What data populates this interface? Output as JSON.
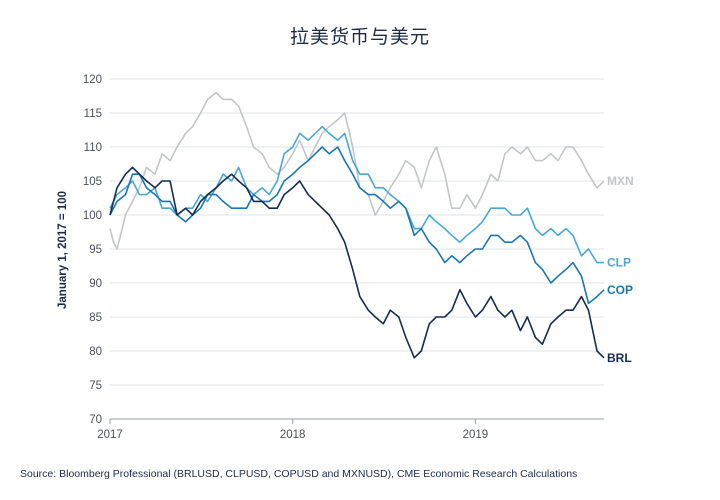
{
  "chart_data": {
    "type": "line",
    "title": "拉美货币与美元",
    "ylabel": "January 1, 2017 = 100",
    "xlabel": "",
    "source": "Source: Bloomberg Professional (BRLUSD, CLPUSD, COPUSD and MXNUSD), CME Economic Research Calculations",
    "ylim": [
      70,
      120
    ],
    "y_ticks": [
      70,
      75,
      80,
      85,
      90,
      95,
      100,
      105,
      110,
      115,
      120
    ],
    "x_range": [
      "2017-01-01",
      "2019-09-15"
    ],
    "x_ticks": [
      {
        "date": "2017-01-01",
        "label": "2017"
      },
      {
        "date": "2018-01-01",
        "label": "2018"
      },
      {
        "date": "2019-01-01",
        "label": "2019"
      }
    ],
    "grid": true,
    "legend": "direct labels at line ends (right)",
    "series": [
      {
        "name": "MXN",
        "color": "#c3c6c9",
        "x": [
          "2017-01-01",
          "2017-01-08",
          "2017-01-15",
          "2017-01-22",
          "2017-02-01",
          "2017-02-15",
          "2017-03-01",
          "2017-03-15",
          "2017-04-01",
          "2017-04-15",
          "2017-05-01",
          "2017-05-15",
          "2017-06-01",
          "2017-06-15",
          "2017-07-01",
          "2017-07-15",
          "2017-08-01",
          "2017-08-15",
          "2017-09-01",
          "2017-09-15",
          "2017-10-01",
          "2017-10-15",
          "2017-11-01",
          "2017-11-15",
          "2017-12-01",
          "2017-12-15",
          "2018-01-01",
          "2018-01-15",
          "2018-02-01",
          "2018-02-15",
          "2018-03-01",
          "2018-03-15",
          "2018-04-01",
          "2018-04-15",
          "2018-05-01",
          "2018-05-15",
          "2018-06-01",
          "2018-06-15",
          "2018-07-01",
          "2018-07-15",
          "2018-08-01",
          "2018-08-15",
          "2018-09-01",
          "2018-09-15",
          "2018-10-01",
          "2018-10-15",
          "2018-11-01",
          "2018-11-15",
          "2018-12-01",
          "2018-12-15",
          "2019-01-01",
          "2019-01-15",
          "2019-02-01",
          "2019-02-15",
          "2019-03-01",
          "2019-03-15",
          "2019-04-01",
          "2019-04-15",
          "2019-05-01",
          "2019-05-15",
          "2019-06-01",
          "2019-06-15",
          "2019-07-01",
          "2019-07-15",
          "2019-08-01",
          "2019-08-15",
          "2019-09-01",
          "2019-09-15"
        ],
        "values": [
          98,
          96,
          95,
          97,
          100,
          102,
          104,
          107,
          106,
          109,
          108,
          110,
          112,
          113,
          115,
          117,
          118,
          117,
          117,
          116,
          113,
          110,
          109,
          107,
          106,
          107,
          109,
          111,
          108,
          110,
          112,
          113,
          114,
          115,
          110,
          104,
          103,
          100,
          102,
          104,
          106,
          108,
          107,
          104,
          108,
          110,
          106,
          101,
          101,
          103,
          101,
          103,
          106,
          105,
          109,
          110,
          109,
          110,
          108,
          108,
          109,
          108,
          110,
          110,
          108,
          106,
          104,
          105
        ]
      },
      {
        "name": "CLP",
        "color": "#48a7d6",
        "x": [
          "2017-01-01",
          "2017-01-15",
          "2017-02-01",
          "2017-02-15",
          "2017-03-01",
          "2017-03-15",
          "2017-04-01",
          "2017-04-15",
          "2017-05-01",
          "2017-05-15",
          "2017-06-01",
          "2017-06-15",
          "2017-07-01",
          "2017-07-15",
          "2017-08-01",
          "2017-08-15",
          "2017-09-01",
          "2017-09-15",
          "2017-10-01",
          "2017-10-15",
          "2017-11-01",
          "2017-11-15",
          "2017-12-01",
          "2017-12-15",
          "2018-01-01",
          "2018-01-15",
          "2018-02-01",
          "2018-02-15",
          "2018-03-01",
          "2018-03-15",
          "2018-04-01",
          "2018-04-15",
          "2018-05-01",
          "2018-05-15",
          "2018-06-01",
          "2018-06-15",
          "2018-07-01",
          "2018-07-15",
          "2018-08-01",
          "2018-08-15",
          "2018-09-01",
          "2018-09-15",
          "2018-10-01",
          "2018-10-15",
          "2018-11-01",
          "2018-11-15",
          "2018-12-01",
          "2018-12-15",
          "2019-01-01",
          "2019-01-15",
          "2019-02-01",
          "2019-02-15",
          "2019-03-01",
          "2019-03-15",
          "2019-04-01",
          "2019-04-15",
          "2019-05-01",
          "2019-05-15",
          "2019-06-01",
          "2019-06-15",
          "2019-07-01",
          "2019-07-15",
          "2019-08-01",
          "2019-08-15",
          "2019-09-01",
          "2019-09-15"
        ],
        "values": [
          101,
          103,
          104,
          105,
          103,
          103,
          104,
          101,
          101,
          100,
          101,
          101,
          103,
          102,
          104,
          106,
          105,
          107,
          104,
          103,
          104,
          103,
          105,
          109,
          110,
          112,
          111,
          112,
          113,
          112,
          111,
          112,
          108,
          106,
          106,
          104,
          104,
          103,
          102,
          101,
          98,
          98,
          100,
          99,
          98,
          97,
          96,
          97,
          98,
          99,
          101,
          101,
          101,
          100,
          100,
          101,
          98,
          97,
          98,
          97,
          98,
          97,
          94,
          95,
          93,
          93
        ]
      },
      {
        "name": "COP",
        "color": "#1977b3",
        "x": [
          "2017-01-01",
          "2017-01-15",
          "2017-02-01",
          "2017-02-15",
          "2017-03-01",
          "2017-03-15",
          "2017-04-01",
          "2017-04-15",
          "2017-05-01",
          "2017-05-15",
          "2017-06-01",
          "2017-06-15",
          "2017-07-01",
          "2017-07-15",
          "2017-08-01",
          "2017-08-15",
          "2017-09-01",
          "2017-09-15",
          "2017-10-01",
          "2017-10-15",
          "2017-11-01",
          "2017-11-15",
          "2017-12-01",
          "2017-12-15",
          "2018-01-01",
          "2018-01-15",
          "2018-02-01",
          "2018-02-15",
          "2018-03-01",
          "2018-03-15",
          "2018-04-01",
          "2018-04-15",
          "2018-05-01",
          "2018-05-15",
          "2018-06-01",
          "2018-06-15",
          "2018-07-01",
          "2018-07-15",
          "2018-08-01",
          "2018-08-15",
          "2018-09-01",
          "2018-09-15",
          "2018-10-01",
          "2018-10-15",
          "2018-11-01",
          "2018-11-15",
          "2018-12-01",
          "2018-12-15",
          "2019-01-01",
          "2019-01-15",
          "2019-02-01",
          "2019-02-15",
          "2019-03-01",
          "2019-03-15",
          "2019-04-01",
          "2019-04-15",
          "2019-05-01",
          "2019-05-15",
          "2019-06-01",
          "2019-06-15",
          "2019-07-01",
          "2019-07-15",
          "2019-08-01",
          "2019-08-15",
          "2019-09-01",
          "2019-09-15"
        ],
        "values": [
          100,
          102,
          103,
          106,
          106,
          104,
          103,
          102,
          102,
          100,
          99,
          100,
          101,
          103,
          103,
          102,
          101,
          101,
          101,
          103,
          102,
          102,
          103,
          105,
          106,
          107,
          108,
          109,
          110,
          109,
          110,
          108,
          106,
          104,
          103,
          103,
          102,
          101,
          102,
          101,
          97,
          98,
          96,
          95,
          93,
          94,
          93,
          94,
          95,
          95,
          97,
          97,
          96,
          96,
          97,
          96,
          93,
          92,
          90,
          91,
          92,
          93,
          91,
          87,
          88,
          89
        ]
      },
      {
        "name": "BRL",
        "color": "#152c52",
        "x": [
          "2017-01-01",
          "2017-01-15",
          "2017-02-01",
          "2017-02-15",
          "2017-03-01",
          "2017-03-15",
          "2017-04-01",
          "2017-04-15",
          "2017-05-01",
          "2017-05-15",
          "2017-06-01",
          "2017-06-15",
          "2017-07-01",
          "2017-07-15",
          "2017-08-01",
          "2017-08-15",
          "2017-09-01",
          "2017-09-15",
          "2017-10-01",
          "2017-10-15",
          "2017-11-01",
          "2017-11-15",
          "2017-12-01",
          "2017-12-15",
          "2018-01-01",
          "2018-01-15",
          "2018-02-01",
          "2018-02-15",
          "2018-03-01",
          "2018-03-15",
          "2018-04-01",
          "2018-04-15",
          "2018-05-01",
          "2018-05-15",
          "2018-06-01",
          "2018-06-15",
          "2018-07-01",
          "2018-07-15",
          "2018-08-01",
          "2018-08-15",
          "2018-09-01",
          "2018-09-15",
          "2018-10-01",
          "2018-10-15",
          "2018-11-01",
          "2018-11-15",
          "2018-12-01",
          "2018-12-15",
          "2019-01-01",
          "2019-01-15",
          "2019-02-01",
          "2019-02-15",
          "2019-03-01",
          "2019-03-15",
          "2019-04-01",
          "2019-04-15",
          "2019-05-01",
          "2019-05-15",
          "2019-06-01",
          "2019-06-15",
          "2019-07-01",
          "2019-07-15",
          "2019-08-01",
          "2019-08-15",
          "2019-09-01",
          "2019-09-15"
        ],
        "values": [
          100,
          104,
          106,
          107,
          106,
          105,
          104,
          105,
          105,
          100,
          101,
          100,
          102,
          103,
          104,
          105,
          106,
          105,
          104,
          102,
          102,
          101,
          101,
          103,
          104,
          105,
          103,
          102,
          101,
          100,
          98,
          96,
          92,
          88,
          86,
          85,
          84,
          86,
          85,
          82,
          79,
          80,
          84,
          85,
          85,
          86,
          89,
          87,
          85,
          86,
          88,
          86,
          85,
          86,
          83,
          85,
          82,
          81,
          84,
          85,
          86,
          86,
          88,
          86,
          80,
          79
        ]
      }
    ]
  }
}
